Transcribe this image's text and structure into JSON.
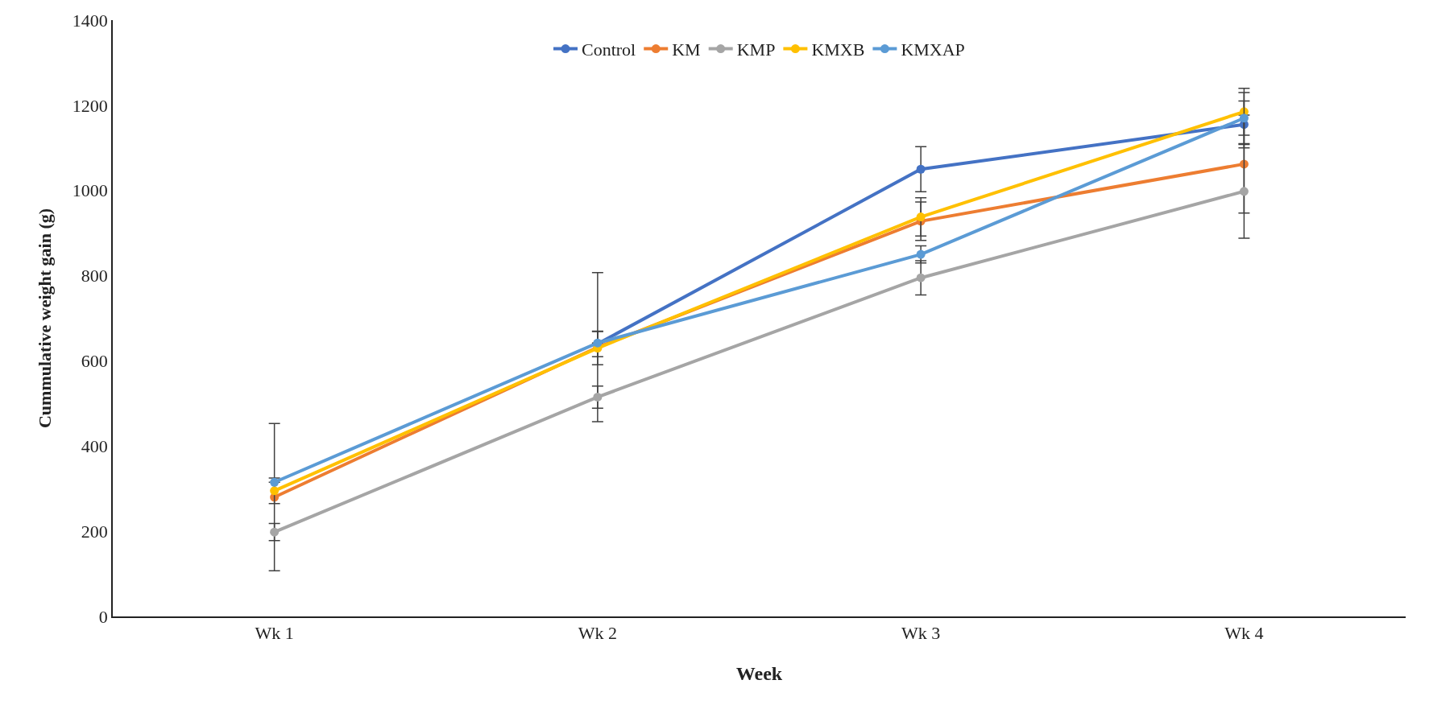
{
  "chart_data": {
    "type": "line",
    "xlabel": "Week",
    "ylabel": "Cummulative weight gain (g)",
    "categories": [
      "Wk 1",
      "Wk 2",
      "Wk 3",
      "Wk 4"
    ],
    "series": [
      {
        "name": "Control",
        "color": "#4472c4",
        "values": [
          null,
          640,
          1050,
          1155
        ],
        "errors": [
          null,
          30,
          53,
          55
        ]
      },
      {
        "name": "KM",
        "color": "#ed7d31",
        "values": [
          280,
          632,
          928,
          1062
        ],
        "errors": [
          173,
          175,
          45,
          115
        ]
      },
      {
        "name": "KMP",
        "color": "#a5a5a5",
        "values": [
          198,
          515,
          795,
          998
        ],
        "errors": [
          20,
          26,
          40,
          110
        ]
      },
      {
        "name": "KMXB",
        "color": "#ffc000",
        "values": [
          295,
          630,
          938,
          1185
        ],
        "errors": [
          30,
          39,
          45,
          55
        ]
      },
      {
        "name": "KMXAP",
        "color": "#5b9bd5",
        "values": [
          315,
          642,
          850,
          1170
        ],
        "errors": [
          null,
          null,
          20,
          60
        ]
      }
    ],
    "ylim": [
      0,
      1400
    ],
    "yticks": [
      0,
      200,
      400,
      600,
      800,
      1000,
      1200,
      1400
    ],
    "grid": false,
    "legend": "top",
    "marker": "circle",
    "line_style": "solid"
  }
}
